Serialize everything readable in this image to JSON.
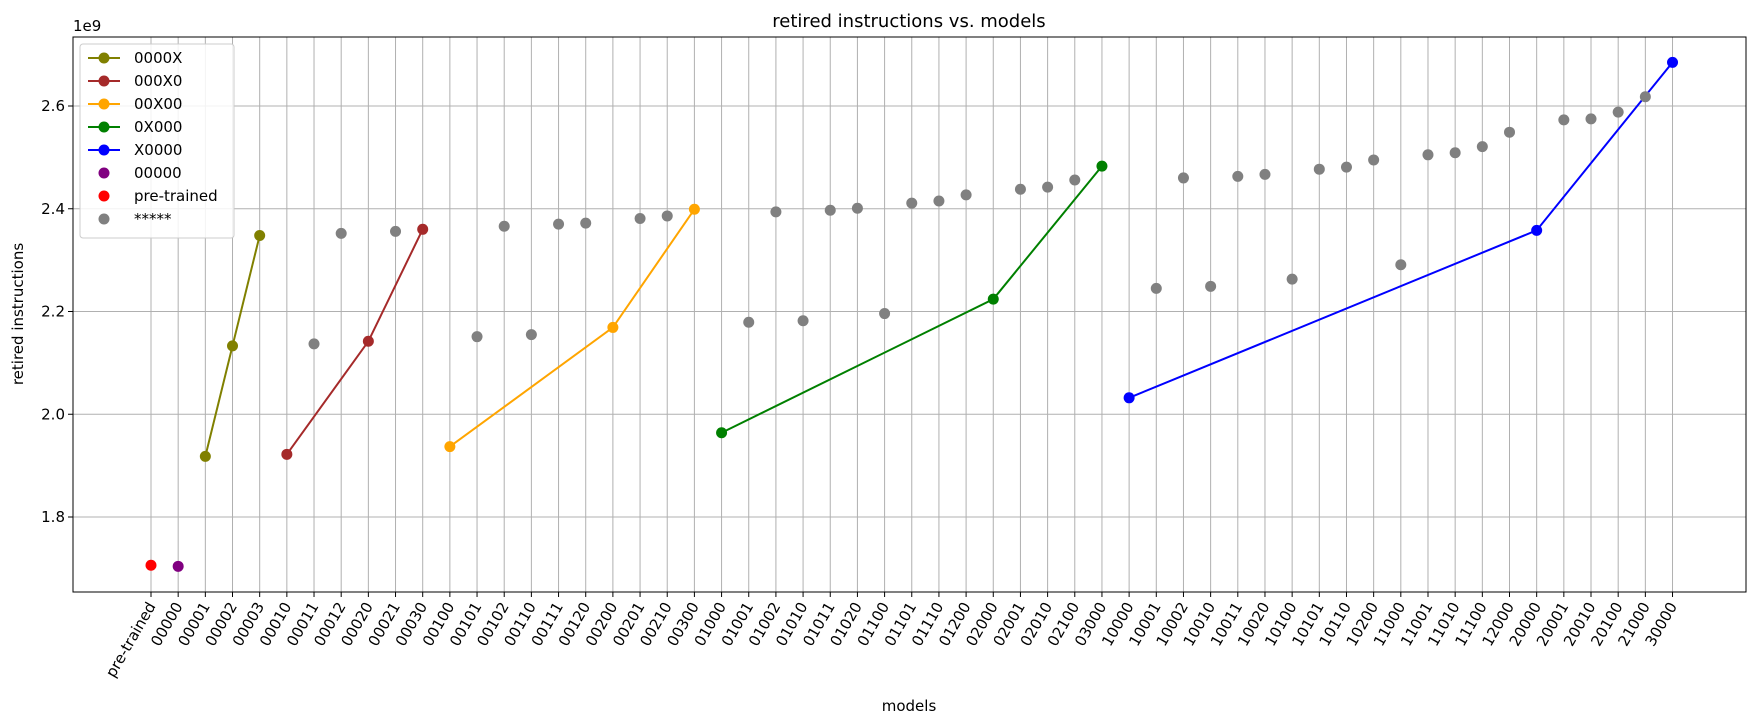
{
  "chart_data": {
    "type": "line",
    "title": "retired instructions vs. models",
    "xlabel": "models",
    "ylabel": "retired instructions",
    "y_multiplier_label": "1e9",
    "ylim": [
      1.65,
      2.73
    ],
    "yticks": [
      "1.8",
      "2.0",
      "2.2",
      "2.4",
      "2.6"
    ],
    "ytick_values": [
      1.8,
      2.0,
      2.2,
      2.4,
      2.6
    ],
    "grid": true,
    "legend_position": "top-left",
    "categories": [
      "pre-trained",
      "00000",
      "00001",
      "00002",
      "00003",
      "00010",
      "00011",
      "00012",
      "00020",
      "00021",
      "00030",
      "00100",
      "00101",
      "00102",
      "00110",
      "00111",
      "00120",
      "00200",
      "00201",
      "00210",
      "00300",
      "01000",
      "01001",
      "01002",
      "01010",
      "01011",
      "01020",
      "01100",
      "01101",
      "01110",
      "01200",
      "02000",
      "02001",
      "02010",
      "02100",
      "03000",
      "10000",
      "10001",
      "10002",
      "10010",
      "10011",
      "10020",
      "10100",
      "10101",
      "10110",
      "10200",
      "11000",
      "11001",
      "11010",
      "11100",
      "12000",
      "20000",
      "20001",
      "20010",
      "20100",
      "21000",
      "30000"
    ],
    "series": [
      {
        "name": "0000X",
        "kind": "line",
        "color": "#808000",
        "x": [
          "00001",
          "00002",
          "00003"
        ],
        "values": [
          1.918,
          2.133,
          2.348
        ]
      },
      {
        "name": "000X0",
        "kind": "line",
        "color": "#a52a2a",
        "x": [
          "00010",
          "00020",
          "00030"
        ],
        "values": [
          1.922,
          2.142,
          2.36
        ]
      },
      {
        "name": "00X00",
        "kind": "line",
        "color": "#ffa500",
        "x": [
          "00100",
          "00200",
          "00300"
        ],
        "values": [
          1.937,
          2.169,
          2.399
        ]
      },
      {
        "name": "0X000",
        "kind": "line",
        "color": "#008000",
        "x": [
          "01000",
          "02000",
          "03000"
        ],
        "values": [
          1.964,
          2.224,
          2.483
        ]
      },
      {
        "name": "X0000",
        "kind": "line",
        "color": "#0000ff",
        "x": [
          "10000",
          "20000",
          "30000"
        ],
        "values": [
          2.032,
          2.358,
          2.685
        ]
      },
      {
        "name": "00000",
        "kind": "scatter",
        "color": "#800080",
        "x": [
          "00000"
        ],
        "values": [
          1.704
        ]
      },
      {
        "name": "pre-trained",
        "kind": "scatter",
        "color": "#ff0000",
        "x": [
          "pre-trained"
        ],
        "values": [
          1.706
        ]
      },
      {
        "name": "*****",
        "kind": "scatter",
        "color": "#808080",
        "x": [
          "00011",
          "00012",
          "00021",
          "00101",
          "00102",
          "00110",
          "00111",
          "00120",
          "00201",
          "00210",
          "01001",
          "01002",
          "01010",
          "01011",
          "01020",
          "01100",
          "01101",
          "01110",
          "01200",
          "02001",
          "02010",
          "02100",
          "10001",
          "10002",
          "10010",
          "10011",
          "10020",
          "10100",
          "10101",
          "10110",
          "10200",
          "11000",
          "11001",
          "11010",
          "11100",
          "12000",
          "20001",
          "20010",
          "20100",
          "21000"
        ],
        "values": [
          2.137,
          2.352,
          2.356,
          2.151,
          2.366,
          2.155,
          2.37,
          2.372,
          2.381,
          2.386,
          2.179,
          2.394,
          2.182,
          2.397,
          2.401,
          2.196,
          2.411,
          2.415,
          2.427,
          2.438,
          2.442,
          2.456,
          2.245,
          2.46,
          2.249,
          2.463,
          2.467,
          2.263,
          2.477,
          2.481,
          2.495,
          2.291,
          2.505,
          2.509,
          2.521,
          2.549,
          2.573,
          2.575,
          2.588,
          2.618
        ]
      }
    ]
  }
}
